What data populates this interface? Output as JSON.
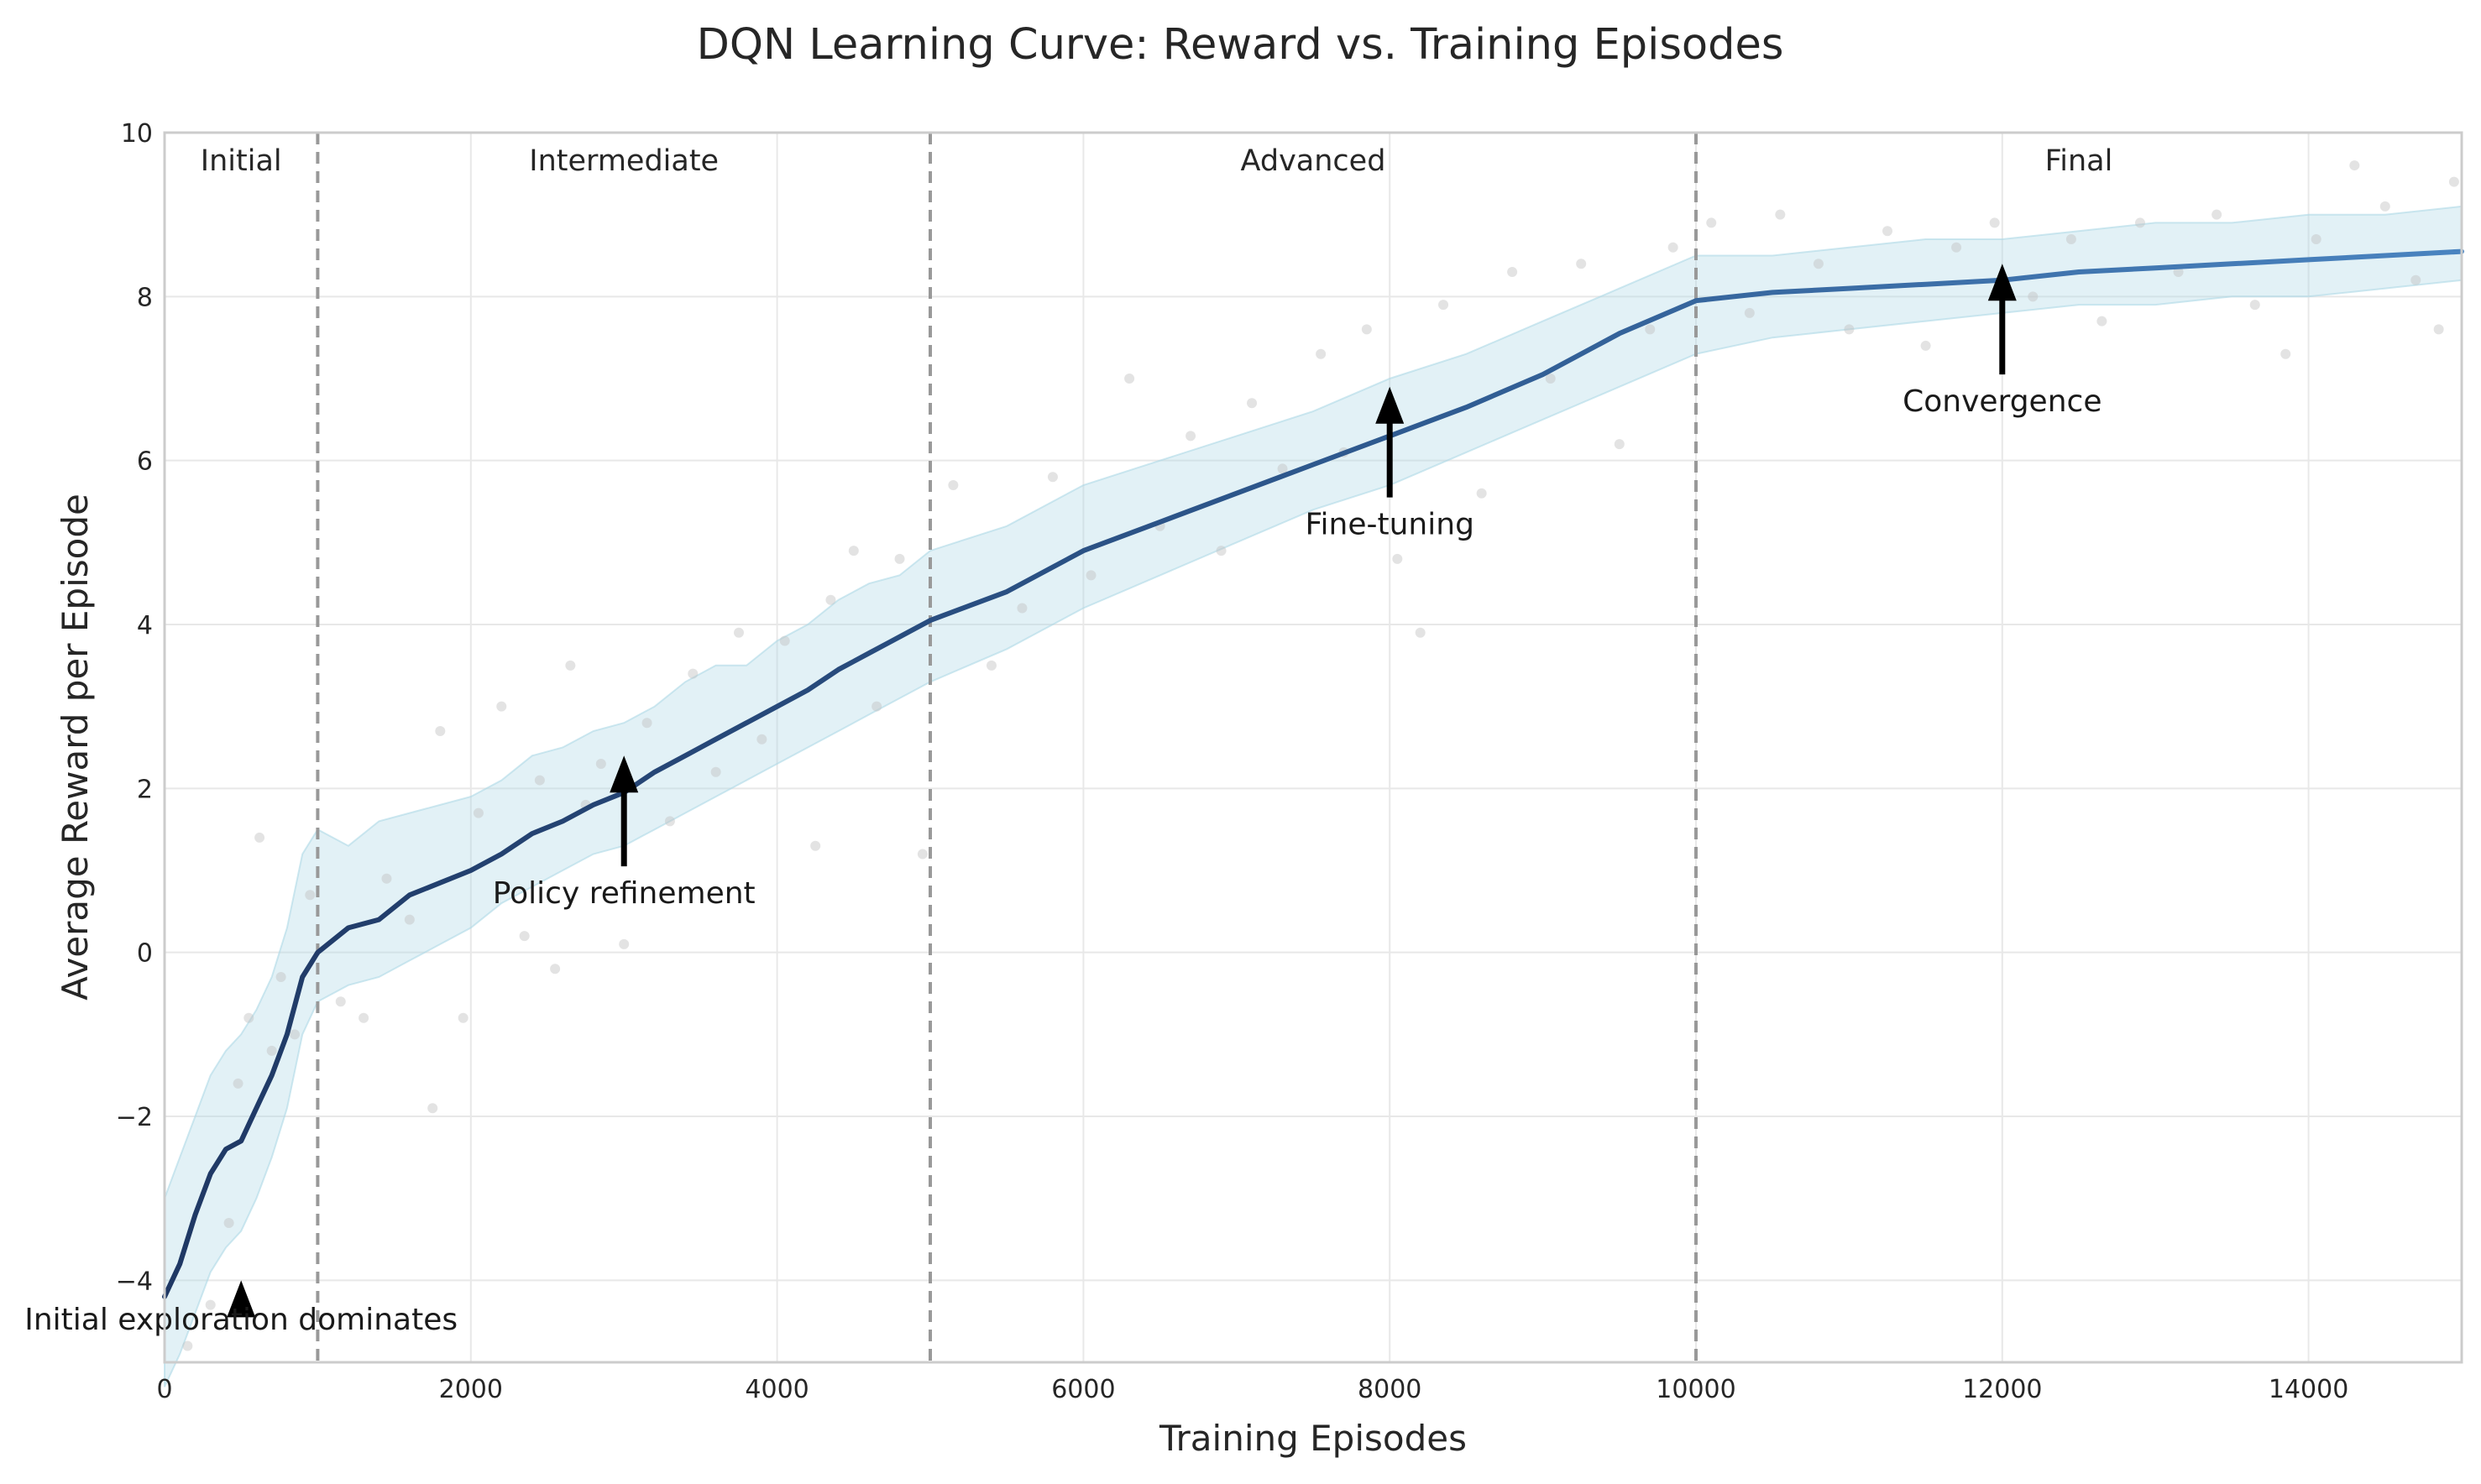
{
  "chart_data": {
    "type": "line",
    "title": "DQN Learning Curve: Reward vs. Training Episodes",
    "xlabel": "Training Episodes",
    "ylabel": "Average Reward per Episode",
    "xlim": [
      0,
      15000
    ],
    "ylim": [
      -5,
      10
    ],
    "x_ticks": [
      0,
      2000,
      4000,
      6000,
      8000,
      10000,
      12000,
      14000
    ],
    "y_ticks": [
      -4,
      -2,
      0,
      2,
      4,
      6,
      8,
      10
    ],
    "grid": true,
    "phase_boundaries": [
      1000,
      5000,
      10000
    ],
    "phases": [
      {
        "label": "Initial",
        "x": 500
      },
      {
        "label": "Intermediate",
        "x": 3000
      },
      {
        "label": "Advanced",
        "x": 7500
      },
      {
        "label": "Final",
        "x": 12500
      }
    ],
    "annotations": [
      {
        "label": "Initial exploration dominates",
        "x": 500,
        "y": -4.0,
        "text_y": -4.6
      },
      {
        "label": "Policy refinement",
        "x": 3000,
        "y": 2.4,
        "text_y": 0.6
      },
      {
        "label": "Fine-tuning",
        "x": 8000,
        "y": 6.9,
        "text_y": 5.1
      },
      {
        "label": "Convergence",
        "x": 12000,
        "y": 8.4,
        "text_y": 6.6
      }
    ],
    "series": [
      {
        "x": [
          0,
          100,
          200,
          300,
          400,
          500,
          600,
          700,
          800,
          900,
          1000,
          1200,
          1400,
          1600,
          1800,
          2000,
          2200,
          2400,
          2600,
          2800,
          3000,
          3200,
          3400,
          3600,
          3800,
          4000,
          4200,
          4400,
          4600,
          4800,
          5000,
          5500,
          6000,
          6500,
          7000,
          7500,
          8000,
          8500,
          9000,
          9500,
          10000,
          10500,
          11000,
          11500,
          12000,
          12500,
          13000,
          13500,
          14000,
          14500,
          15000
        ],
        "y": [
          -4.2,
          -3.8,
          -3.2,
          -2.7,
          -2.4,
          -2.3,
          -1.9,
          -1.5,
          -1.0,
          -0.3,
          0.0,
          0.3,
          0.4,
          0.7,
          0.85,
          1.0,
          1.2,
          1.45,
          1.6,
          1.8,
          1.95,
          2.2,
          2.4,
          2.6,
          2.8,
          3.0,
          3.2,
          3.45,
          3.65,
          3.85,
          4.05,
          4.4,
          4.9,
          5.25,
          5.6,
          5.95,
          6.3,
          6.65,
          7.05,
          7.55,
          7.95,
          8.05,
          8.1,
          8.15,
          8.2,
          8.3,
          8.35,
          8.4,
          8.45,
          8.5,
          8.55
        ],
        "band_lower": [
          -5.3,
          -4.9,
          -4.4,
          -3.9,
          -3.6,
          -3.4,
          -3.0,
          -2.5,
          -1.9,
          -1.0,
          -0.6,
          -0.4,
          -0.3,
          -0.1,
          0.1,
          0.3,
          0.6,
          0.8,
          1.0,
          1.2,
          1.3,
          1.5,
          1.7,
          1.9,
          2.1,
          2.3,
          2.5,
          2.7,
          2.9,
          3.1,
          3.3,
          3.7,
          4.2,
          4.6,
          5.0,
          5.4,
          5.7,
          6.1,
          6.5,
          6.9,
          7.3,
          7.5,
          7.6,
          7.7,
          7.8,
          7.9,
          7.9,
          8.0,
          8.0,
          8.1,
          8.2
        ],
        "band_upper": [
          -3.0,
          -2.5,
          -2.0,
          -1.5,
          -1.2,
          -1.0,
          -0.7,
          -0.3,
          0.3,
          1.2,
          1.5,
          1.3,
          1.6,
          1.7,
          1.8,
          1.9,
          2.1,
          2.4,
          2.5,
          2.7,
          2.8,
          3.0,
          3.3,
          3.5,
          3.5,
          3.8,
          4.0,
          4.3,
          4.5,
          4.6,
          4.9,
          5.2,
          5.7,
          6.0,
          6.3,
          6.6,
          7.0,
          7.3,
          7.7,
          8.1,
          8.5,
          8.5,
          8.6,
          8.7,
          8.7,
          8.8,
          8.9,
          8.9,
          9.0,
          9.0,
          9.1
        ]
      }
    ],
    "scatter_points": [
      [
        150,
        -4.8
      ],
      [
        300,
        -4.3
      ],
      [
        420,
        -3.3
      ],
      [
        480,
        -1.6
      ],
      [
        550,
        -0.8
      ],
      [
        620,
        1.4
      ],
      [
        700,
        -1.2
      ],
      [
        760,
        -0.3
      ],
      [
        850,
        -1.0
      ],
      [
        950,
        0.7
      ],
      [
        1150,
        -0.6
      ],
      [
        1300,
        -0.8
      ],
      [
        1450,
        0.9
      ],
      [
        1600,
        0.4
      ],
      [
        1750,
        -1.9
      ],
      [
        1800,
        2.7
      ],
      [
        1950,
        -0.8
      ],
      [
        2050,
        1.7
      ],
      [
        2200,
        3.0
      ],
      [
        2350,
        0.2
      ],
      [
        2450,
        2.1
      ],
      [
        2550,
        -0.2
      ],
      [
        2650,
        3.5
      ],
      [
        2750,
        1.8
      ],
      [
        2850,
        2.3
      ],
      [
        3000,
        0.1
      ],
      [
        3150,
        2.8
      ],
      [
        3300,
        1.6
      ],
      [
        3450,
        3.4
      ],
      [
        3600,
        2.2
      ],
      [
        3750,
        3.9
      ],
      [
        3900,
        2.6
      ],
      [
        4050,
        3.8
      ],
      [
        4250,
        1.3
      ],
      [
        4350,
        4.3
      ],
      [
        4500,
        4.9
      ],
      [
        4650,
        3.0
      ],
      [
        4800,
        4.8
      ],
      [
        4950,
        1.2
      ],
      [
        5150,
        5.7
      ],
      [
        5400,
        3.5
      ],
      [
        5600,
        4.2
      ],
      [
        5800,
        5.8
      ],
      [
        6050,
        4.6
      ],
      [
        6300,
        7.0
      ],
      [
        6500,
        5.2
      ],
      [
        6700,
        6.3
      ],
      [
        6900,
        4.9
      ],
      [
        7100,
        6.7
      ],
      [
        7300,
        5.9
      ],
      [
        7550,
        7.3
      ],
      [
        7700,
        6.1
      ],
      [
        7850,
        7.6
      ],
      [
        8050,
        4.8
      ],
      [
        8200,
        3.9
      ],
      [
        8350,
        7.9
      ],
      [
        8600,
        5.6
      ],
      [
        8800,
        8.3
      ],
      [
        9050,
        7.0
      ],
      [
        9250,
        8.4
      ],
      [
        9500,
        6.2
      ],
      [
        9700,
        7.6
      ],
      [
        9850,
        8.6
      ],
      [
        10100,
        8.9
      ],
      [
        10350,
        7.8
      ],
      [
        10550,
        9.0
      ],
      [
        10800,
        8.4
      ],
      [
        11000,
        7.6
      ],
      [
        11250,
        8.8
      ],
      [
        11500,
        7.4
      ],
      [
        11700,
        8.6
      ],
      [
        11950,
        8.9
      ],
      [
        12200,
        8.0
      ],
      [
        12450,
        8.7
      ],
      [
        12650,
        7.7
      ],
      [
        12900,
        8.9
      ],
      [
        13150,
        8.3
      ],
      [
        13400,
        9.0
      ],
      [
        13650,
        7.9
      ],
      [
        13850,
        7.3
      ],
      [
        14050,
        8.7
      ],
      [
        14300,
        9.6
      ],
      [
        14500,
        9.1
      ],
      [
        14700,
        8.2
      ],
      [
        14850,
        7.6
      ],
      [
        14950,
        9.4
      ]
    ],
    "colors": {
      "line_early": "#1f3864",
      "line_late": "#4a84c0",
      "band": "#add8e6",
      "scatter": "#c0c0c0",
      "divider": "#999999",
      "grid": "#e8e8e8",
      "arrow": "#000000"
    }
  }
}
